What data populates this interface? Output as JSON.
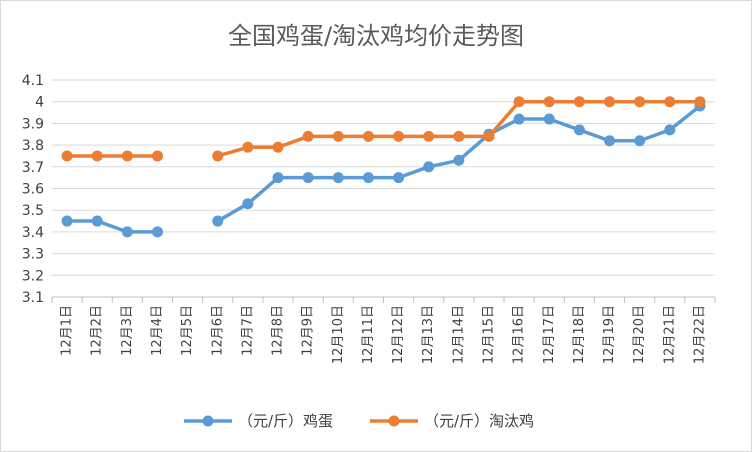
{
  "chart_data": {
    "type": "line",
    "title": "全国鸡蛋/淘汰鸡均价走势图",
    "xlabel": "",
    "ylabel": "",
    "categories": [
      "12月1日",
      "12月2日",
      "12月3日",
      "12月4日",
      "12月5日",
      "12月6日",
      "12月7日",
      "12月8日",
      "12月9日",
      "12月10日",
      "12月11日",
      "12月12日",
      "12月13日",
      "12月14日",
      "12月15日",
      "12月16日",
      "12月17日",
      "12月18日",
      "12月19日",
      "12月20日",
      "12月21日",
      "12月22日"
    ],
    "ylim": [
      3.1,
      4.1
    ],
    "yticks": [
      "3.1",
      "3.2",
      "3.3",
      "3.4",
      "3.5",
      "3.6",
      "3.7",
      "3.8",
      "3.9",
      "4",
      "4.1"
    ],
    "grid": true,
    "legend_position": "bottom",
    "series": [
      {
        "name": "（元/斤）鸡蛋",
        "color": "#5B9BD5",
        "values": [
          3.45,
          3.45,
          3.4,
          3.4,
          null,
          3.45,
          3.53,
          3.65,
          3.65,
          3.65,
          3.65,
          3.65,
          3.7,
          3.73,
          3.85,
          3.92,
          3.92,
          3.87,
          3.82,
          3.82,
          3.87,
          3.98
        ]
      },
      {
        "name": "（元/斤）淘汰鸡",
        "color": "#ED7D31",
        "values": [
          3.75,
          3.75,
          3.75,
          3.75,
          null,
          3.75,
          3.79,
          3.79,
          3.84,
          3.84,
          3.84,
          3.84,
          3.84,
          3.84,
          3.84,
          4.0,
          4.0,
          4.0,
          4.0,
          4.0,
          4.0,
          4.0
        ]
      }
    ]
  }
}
